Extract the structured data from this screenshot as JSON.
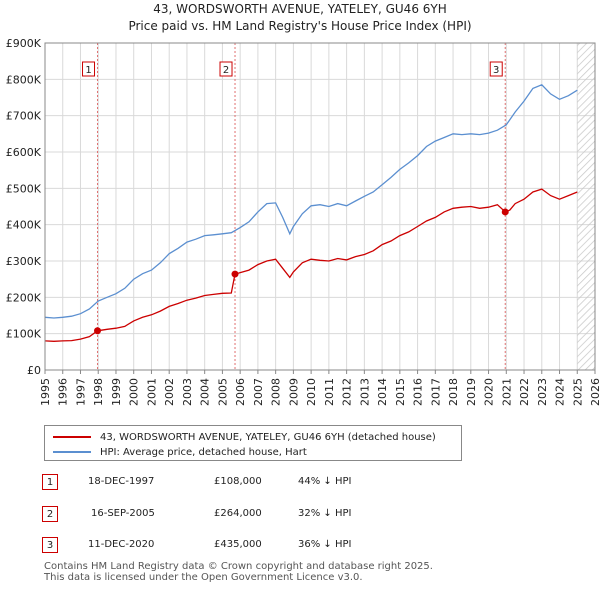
{
  "chart_data": {
    "type": "line",
    "title": "43, WORDSWORTH AVENUE, YATELEY, GU46 6YH",
    "subtitle": "Price paid vs. HM Land Registry's House Price Index (HPI)",
    "xlabel": "",
    "ylabel": "",
    "xlim": [
      1995,
      2026
    ],
    "ylim": [
      0,
      900000
    ],
    "x_ticks": [
      "1995",
      "1996",
      "1997",
      "1998",
      "1999",
      "2000",
      "2001",
      "2002",
      "2003",
      "2004",
      "2005",
      "2006",
      "2007",
      "2008",
      "2009",
      "2010",
      "2011",
      "2012",
      "2013",
      "2014",
      "2015",
      "2016",
      "2017",
      "2018",
      "2019",
      "2020",
      "2021",
      "2022",
      "2023",
      "2024",
      "2025",
      "2026"
    ],
    "y_ticks": [
      {
        "value": 0,
        "label": "£0"
      },
      {
        "value": 100000,
        "label": "£100K"
      },
      {
        "value": 200000,
        "label": "£200K"
      },
      {
        "value": 300000,
        "label": "£300K"
      },
      {
        "value": 400000,
        "label": "£400K"
      },
      {
        "value": 500000,
        "label": "£500K"
      },
      {
        "value": 600000,
        "label": "£600K"
      },
      {
        "value": 700000,
        "label": "£700K"
      },
      {
        "value": 800000,
        "label": "£800K"
      },
      {
        "value": 900000,
        "label": "£900K"
      }
    ],
    "grid": true,
    "hatched_after": 2025.0,
    "series": [
      {
        "name": "43, WORDSWORTH AVENUE, YATELEY, GU46 6YH (detached house)",
        "color": "#cc0000",
        "x": [
          1995.0,
          1995.5,
          1996.0,
          1996.5,
          1997.0,
          1997.5,
          1997.96,
          1998.5,
          1999.0,
          1999.5,
          2000.0,
          2000.5,
          2001.0,
          2001.5,
          2002.0,
          2002.5,
          2003.0,
          2003.5,
          2004.0,
          2004.5,
          2005.0,
          2005.5,
          2005.71,
          2006.0,
          2006.5,
          2007.0,
          2007.5,
          2008.0,
          2008.4,
          2008.8,
          2009.0,
          2009.5,
          2010.0,
          2010.5,
          2011.0,
          2011.5,
          2012.0,
          2012.5,
          2013.0,
          2013.5,
          2014.0,
          2014.5,
          2015.0,
          2015.5,
          2016.0,
          2016.5,
          2017.0,
          2017.5,
          2018.0,
          2018.5,
          2019.0,
          2019.5,
          2020.0,
          2020.5,
          2020.94,
          2021.2,
          2021.5,
          2022.0,
          2022.5,
          2023.0,
          2023.5,
          2024.0,
          2024.5,
          2025.0
        ],
        "y": [
          80000,
          79000,
          80000,
          81000,
          85000,
          92000,
          108000,
          112000,
          115000,
          120000,
          135000,
          145000,
          152000,
          162000,
          175000,
          183000,
          192000,
          198000,
          205000,
          208000,
          211000,
          212000,
          264000,
          268000,
          275000,
          290000,
          300000,
          305000,
          280000,
          255000,
          270000,
          295000,
          305000,
          302000,
          300000,
          307000,
          303000,
          312000,
          318000,
          328000,
          345000,
          355000,
          370000,
          380000,
          395000,
          410000,
          420000,
          435000,
          445000,
          448000,
          450000,
          445000,
          448000,
          455000,
          435000,
          440000,
          458000,
          470000,
          490000,
          498000,
          480000,
          470000,
          480000,
          490000
        ]
      },
      {
        "name": "HPI: Average price, detached house, Hart",
        "color": "#5b8fd0",
        "x": [
          1995.0,
          1995.5,
          1996.0,
          1996.5,
          1997.0,
          1997.5,
          1998.0,
          1998.5,
          1999.0,
          1999.5,
          2000.0,
          2000.5,
          2001.0,
          2001.5,
          2002.0,
          2002.5,
          2003.0,
          2003.5,
          2004.0,
          2004.5,
          2005.0,
          2005.5,
          2006.0,
          2006.5,
          2007.0,
          2007.5,
          2008.0,
          2008.4,
          2008.8,
          2009.0,
          2009.5,
          2010.0,
          2010.5,
          2011.0,
          2011.5,
          2012.0,
          2012.5,
          2013.0,
          2013.5,
          2014.0,
          2014.5,
          2015.0,
          2015.5,
          2016.0,
          2016.5,
          2017.0,
          2017.5,
          2018.0,
          2018.5,
          2019.0,
          2019.5,
          2020.0,
          2020.5,
          2021.0,
          2021.5,
          2022.0,
          2022.5,
          2023.0,
          2023.5,
          2024.0,
          2024.5,
          2025.0
        ],
        "y": [
          145000,
          143000,
          145000,
          148000,
          155000,
          168000,
          190000,
          200000,
          210000,
          225000,
          250000,
          265000,
          275000,
          295000,
          320000,
          335000,
          352000,
          360000,
          370000,
          372000,
          375000,
          378000,
          392000,
          408000,
          435000,
          458000,
          460000,
          420000,
          375000,
          395000,
          430000,
          452000,
          455000,
          450000,
          458000,
          452000,
          465000,
          478000,
          490000,
          510000,
          530000,
          552000,
          570000,
          590000,
          615000,
          630000,
          640000,
          650000,
          648000,
          650000,
          648000,
          652000,
          660000,
          675000,
          710000,
          740000,
          775000,
          785000,
          760000,
          745000,
          755000,
          770000
        ]
      }
    ],
    "sale_markers": [
      {
        "label": "1",
        "x": 1997.96,
        "y": 108000
      },
      {
        "label": "2",
        "x": 2005.71,
        "y": 264000
      },
      {
        "label": "3",
        "x": 2020.94,
        "y": 435000
      }
    ]
  },
  "legend": {
    "property_label": "43, WORDSWORTH AVENUE, YATELEY, GU46 6YH (detached house)",
    "hpi_label": "HPI: Average price, detached house, Hart"
  },
  "transactions": [
    {
      "num": "1",
      "date": "18-DEC-1997",
      "price": "£108,000",
      "hpi": "44% ↓ HPI"
    },
    {
      "num": "2",
      "date": "16-SEP-2005",
      "price": "£264,000",
      "hpi": "32% ↓ HPI"
    },
    {
      "num": "3",
      "date": "11-DEC-2020",
      "price": "£435,000",
      "hpi": "36% ↓ HPI"
    }
  ],
  "footer": {
    "line1": "Contains HM Land Registry data © Crown copyright and database right 2025.",
    "line2": "This data is licensed under the Open Government Licence v3.0."
  }
}
